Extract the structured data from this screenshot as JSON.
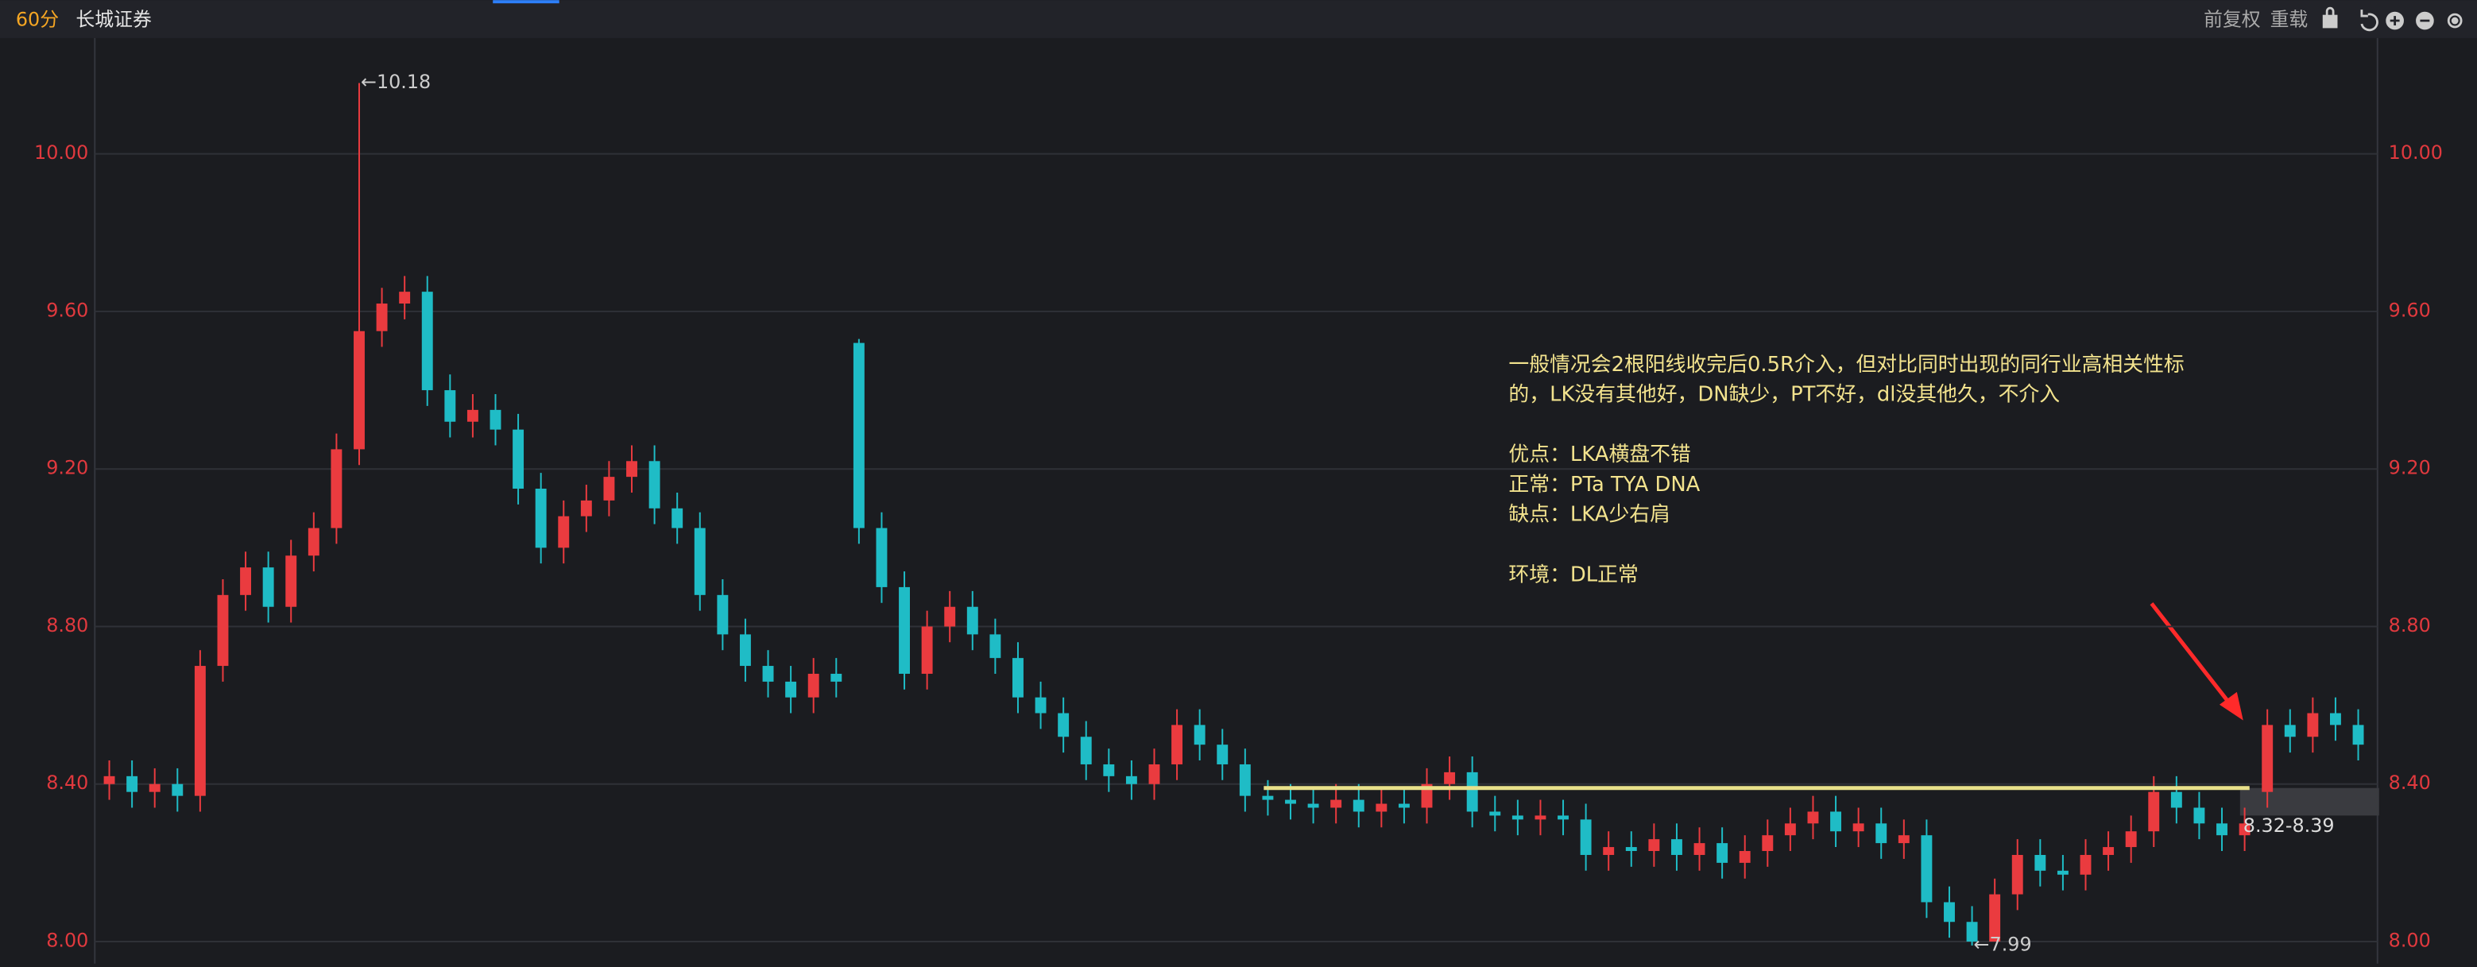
{
  "toolbar": {
    "period": "60分",
    "stock": "长城证券",
    "actions": [
      "前复权",
      "重载"
    ]
  },
  "chart_data": {
    "type": "candlestick",
    "up_color": "#ea3b3f",
    "down_color": "#1fbcc6",
    "grid": true,
    "ylim": [
      7.96,
      10.27
    ],
    "yticks": [
      {
        "value": 8,
        "label": "8.00"
      },
      {
        "value": 8.4,
        "label": "8.40"
      },
      {
        "value": 8.8,
        "label": "8.80"
      },
      {
        "value": 9.2,
        "label": "9.20"
      },
      {
        "value": 9.6,
        "label": "9.60"
      },
      {
        "value": 10,
        "label": "10.00"
      }
    ],
    "open": [
      8.4,
      8.42,
      8.38,
      8.4,
      8.37,
      8.7,
      8.88,
      8.95,
      8.85,
      8.98,
      9.05,
      9.25,
      9.55,
      9.62,
      9.65,
      9.4,
      9.32,
      9.35,
      9.3,
      9.15,
      9.0,
      9.08,
      9.12,
      9.18,
      9.22,
      9.1,
      9.05,
      8.88,
      8.78,
      8.7,
      8.66,
      8.62,
      8.68,
      9.52,
      9.05,
      8.9,
      8.68,
      8.8,
      8.85,
      8.78,
      8.72,
      8.62,
      8.58,
      8.52,
      8.45,
      8.42,
      8.4,
      8.45,
      8.55,
      8.5,
      8.45,
      8.37,
      8.36,
      8.35,
      8.34,
      8.36,
      8.33,
      8.35,
      8.34,
      8.4,
      8.43,
      8.33,
      8.32,
      8.31,
      8.32,
      8.31,
      8.22,
      8.24,
      8.23,
      8.26,
      8.22,
      8.25,
      8.2,
      8.23,
      8.27,
      8.3,
      8.33,
      8.28,
      8.3,
      8.25,
      8.27,
      8.1,
      8.05,
      8.0,
      8.12,
      8.22,
      8.18,
      8.17,
      8.22,
      8.24,
      8.28,
      8.38,
      8.34,
      8.3,
      8.27,
      8.38,
      8.55,
      8.52,
      8.58,
      8.55
    ],
    "high": [
      8.46,
      8.46,
      8.44,
      8.44,
      8.74,
      8.92,
      8.99,
      8.99,
      9.02,
      9.09,
      9.29,
      10.18,
      9.66,
      9.69,
      9.69,
      9.44,
      9.39,
      9.39,
      9.34,
      9.19,
      9.12,
      9.16,
      9.22,
      9.26,
      9.26,
      9.14,
      9.09,
      8.92,
      8.82,
      8.74,
      8.7,
      8.72,
      8.72,
      9.53,
      9.09,
      8.94,
      8.84,
      8.89,
      8.89,
      8.82,
      8.76,
      8.66,
      8.62,
      8.56,
      8.49,
      8.46,
      8.49,
      8.59,
      8.59,
      8.54,
      8.49,
      8.41,
      8.4,
      8.39,
      8.4,
      8.4,
      8.39,
      8.39,
      8.44,
      8.47,
      8.47,
      8.37,
      8.36,
      8.36,
      8.36,
      8.35,
      8.28,
      8.28,
      8.3,
      8.3,
      8.29,
      8.29,
      8.27,
      8.31,
      8.34,
      8.37,
      8.37,
      8.34,
      8.34,
      8.31,
      8.31,
      8.14,
      8.09,
      8.16,
      8.26,
      8.26,
      8.22,
      8.26,
      8.28,
      8.32,
      8.42,
      8.42,
      8.38,
      8.34,
      8.34,
      8.59,
      8.59,
      8.62,
      8.62,
      8.59
    ],
    "low": [
      8.36,
      8.34,
      8.34,
      8.33,
      8.33,
      8.66,
      8.84,
      8.81,
      8.81,
      8.94,
      9.01,
      9.21,
      9.51,
      9.58,
      9.36,
      9.28,
      9.28,
      9.26,
      9.11,
      8.96,
      8.96,
      9.04,
      9.08,
      9.14,
      9.06,
      9.01,
      8.84,
      8.74,
      8.66,
      8.62,
      8.58,
      8.58,
      8.62,
      9.01,
      8.86,
      8.64,
      8.64,
      8.76,
      8.74,
      8.68,
      8.58,
      8.54,
      8.48,
      8.41,
      8.38,
      8.36,
      8.36,
      8.41,
      8.46,
      8.41,
      8.33,
      8.32,
      8.31,
      8.3,
      8.3,
      8.29,
      8.29,
      8.3,
      8.3,
      8.36,
      8.29,
      8.28,
      8.27,
      8.27,
      8.27,
      8.18,
      8.18,
      8.19,
      8.19,
      8.18,
      8.18,
      8.16,
      8.16,
      8.19,
      8.23,
      8.26,
      8.24,
      8.24,
      8.21,
      8.21,
      8.06,
      8.01,
      7.99,
      8.0,
      8.08,
      8.14,
      8.13,
      8.13,
      8.18,
      8.2,
      8.24,
      8.3,
      8.26,
      8.23,
      8.23,
      8.34,
      8.48,
      8.48,
      8.51,
      8.46
    ],
    "close": [
      8.42,
      8.38,
      8.4,
      8.37,
      8.7,
      8.88,
      8.95,
      8.85,
      8.98,
      9.05,
      9.25,
      9.55,
      9.62,
      9.65,
      9.4,
      9.32,
      9.35,
      9.3,
      9.15,
      9.0,
      9.08,
      9.12,
      9.18,
      9.22,
      9.1,
      9.05,
      8.88,
      8.78,
      8.7,
      8.66,
      8.62,
      8.68,
      8.66,
      9.05,
      8.9,
      8.68,
      8.8,
      8.85,
      8.78,
      8.72,
      8.62,
      8.58,
      8.52,
      8.45,
      8.42,
      8.4,
      8.45,
      8.55,
      8.5,
      8.45,
      8.37,
      8.36,
      8.35,
      8.34,
      8.36,
      8.33,
      8.35,
      8.34,
      8.4,
      8.43,
      8.33,
      8.32,
      8.31,
      8.32,
      8.31,
      8.22,
      8.24,
      8.23,
      8.26,
      8.22,
      8.25,
      8.2,
      8.23,
      8.27,
      8.3,
      8.33,
      8.28,
      8.3,
      8.25,
      8.27,
      8.1,
      8.05,
      8.0,
      8.12,
      8.22,
      8.18,
      8.17,
      8.22,
      8.24,
      8.28,
      8.38,
      8.34,
      8.3,
      8.27,
      8.3,
      8.55,
      8.52,
      8.58,
      8.55,
      8.5
    ],
    "high_label": "←10.18",
    "low_label": "←7.99",
    "support_zone": {
      "low": 8.32,
      "high": 8.39,
      "label": "8.32-8.39",
      "color": "#e8e08a"
    },
    "note": [
      [
        "一般情况会2根阳线收完后0.5R介入，但对比同时出现的同行业高相关性标",
        "的，LK没有其他好，DN缺少，PT不好，dl没其他久，不介入"
      ],
      [
        "优点：LKA横盘不错",
        "正常：PTa TYA DNA",
        "缺点：LKA少右肩"
      ],
      [
        "环境：DL正常"
      ]
    ]
  }
}
